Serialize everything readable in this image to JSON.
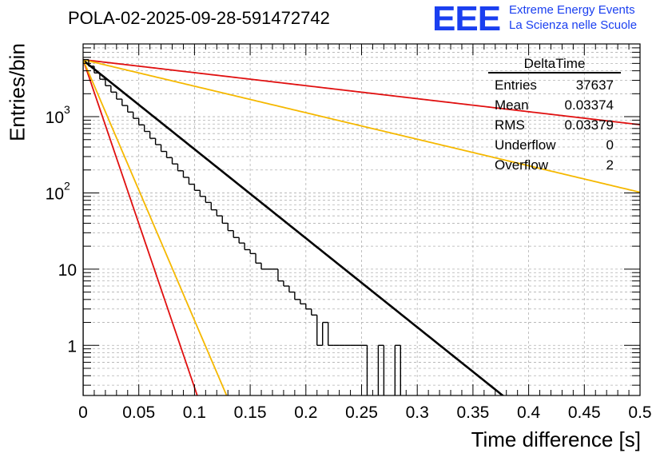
{
  "title": "POLA-02-2025-09-28-591472742",
  "logo": {
    "mark": "EEE",
    "line1": "Extreme Energy Events",
    "line2": "La Scienza nelle Scuole"
  },
  "colors": {
    "hist": "#000000",
    "fit": "#000000",
    "red": "#e01010",
    "yellow": "#f5b800",
    "logo": "#1a3ff0",
    "grid": "#b0b0b0"
  },
  "stats": {
    "title": "DeltaTime",
    "rows": [
      {
        "label": "Entries",
        "value": "37637"
      },
      {
        "label": "Mean",
        "value": "0.03374"
      },
      {
        "label": "RMS",
        "value": "0.03379"
      },
      {
        "label": "Underflow",
        "value": "0"
      },
      {
        "label": "Overflow",
        "value": "2"
      }
    ]
  },
  "chart_data": {
    "type": "histogram",
    "title": "POLA-02-2025-09-28-591472742",
    "xlabel": "Time difference [s]",
    "ylabel": "Entries/bin",
    "xlim": [
      0,
      0.5
    ],
    "ylim": [
      0.22,
      9000
    ],
    "yscale": "log",
    "xticks": [
      "0",
      "0.05",
      "0.1",
      "0.15",
      "0.2",
      "0.25",
      "0.3",
      "0.35",
      "0.4",
      "0.45",
      "0.5"
    ],
    "yticks": [
      {
        "value": 1,
        "label": "1"
      },
      {
        "value": 10,
        "label": "10"
      },
      {
        "value": 100,
        "label": "10",
        "exp": "2"
      },
      {
        "value": 1000,
        "label": "10",
        "exp": "3"
      }
    ],
    "grid": true,
    "bin_width": 0.005,
    "bin_values": [
      5600,
      4600,
      3750,
      3100,
      2550,
      2100,
      1700,
      1400,
      1150,
      950,
      780,
      640,
      520,
      430,
      350,
      290,
      240,
      195,
      160,
      130,
      108,
      90,
      75,
      60,
      50,
      40,
      32,
      26,
      22,
      18,
      16,
      12,
      10,
      10,
      10,
      7,
      6,
      5,
      4,
      3.5,
      3,
      2.5,
      1,
      2,
      1,
      1,
      1,
      1,
      1,
      1,
      1,
      0,
      0,
      1,
      0,
      0,
      1,
      0,
      0,
      0,
      0,
      0,
      0,
      0,
      0,
      0,
      0,
      0,
      0,
      0
    ],
    "series": [
      {
        "name": "fit",
        "color": "black",
        "A": 5500,
        "tau": 0.0372
      },
      {
        "name": "red steep",
        "color": "red",
        "A": 5600,
        "tau": 0.0101
      },
      {
        "name": "yellow steep",
        "color": "yellow",
        "A": 5600,
        "tau": 0.0127
      },
      {
        "name": "red shallow",
        "color": "red",
        "A": 5600,
        "tau": 0.2544
      },
      {
        "name": "yellow shallow",
        "color": "yellow",
        "A": 5600,
        "tau": 0.1248
      }
    ]
  }
}
